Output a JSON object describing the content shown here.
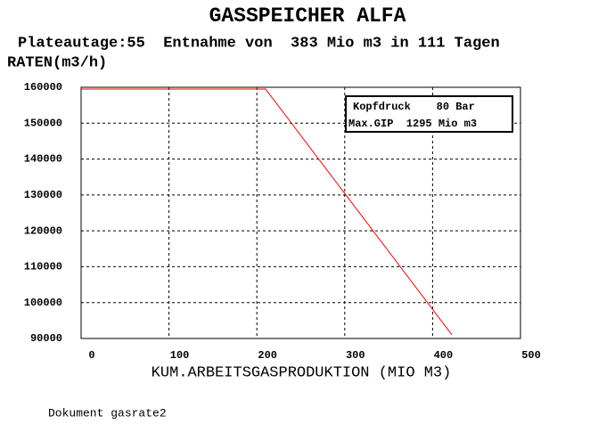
{
  "chart_data": {
    "type": "line",
    "title": "GASSPEICHER ALFA",
    "subtitle": "Plateautage:55  Entnahme von  383 Mio m3 in 111 Tagen",
    "y_label": "RATEN(m3/h)",
    "x_label": "KUM.ARBEITSGASPRODUKTION (MIO M3)",
    "annotations": [
      "Kopfdruck    80 Bar",
      "Max.GIP  1295 Mio m3"
    ],
    "footer": "Dokument gasrate2",
    "x": [
      0,
      210,
      422
    ],
    "series": [
      {
        "color": "#ff0000",
        "values": [
          159500,
          159500,
          91000
        ]
      }
    ],
    "xlim": [
      0,
      500
    ],
    "xticks": [
      0,
      100,
      200,
      300,
      400,
      500
    ],
    "ylim": [
      90000,
      160000
    ],
    "yticks": [
      90000,
      100000,
      110000,
      120000,
      130000,
      140000,
      150000,
      160000
    ],
    "grid": true
  }
}
